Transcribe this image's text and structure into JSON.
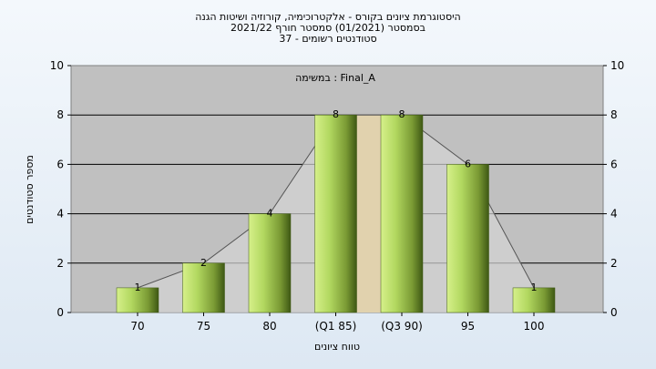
{
  "chart_data": {
    "type": "bar",
    "title": [
      "היסטוגרמת ציונים בקורס - אלקטרוכימיה, קורוזיה ושיטות הגנה",
      "בסמסטר  (01/2021)  סמסטר חורף  2021/22",
      "סטודנטים רשומים - 37"
    ],
    "annotation": "במשימה : Final_A",
    "xlabel": "טווח ציונים",
    "ylabel": "מספר סטודנטים",
    "categories": [
      "70",
      "75",
      "80",
      "(Q1 85)",
      "(Q3 90)",
      "95",
      "100"
    ],
    "values": [
      1,
      2,
      4,
      8,
      8,
      6,
      1
    ],
    "ylim": [
      0,
      10
    ],
    "yticks": [
      0,
      2,
      4,
      6,
      8,
      10
    ],
    "grid": true,
    "highlight_band": {
      "from_category": "(Q1 85)",
      "to_category": "(Q3 90)",
      "color": "#ffcc55"
    },
    "colors": {
      "bar_light": "#c8e878",
      "bar_dark": "#4e6a1c",
      "plot_bg": "#c0c0c0",
      "band": "#ffcc55"
    }
  }
}
